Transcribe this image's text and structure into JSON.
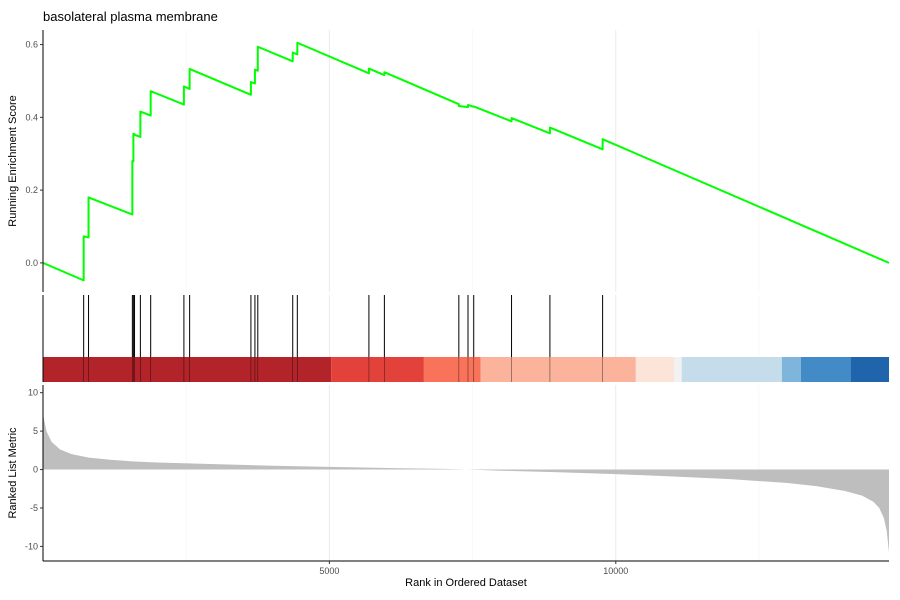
{
  "chart_data": {
    "type": "line",
    "title": "basolateral plasma membrane",
    "xlabel": "Rank in Ordered Dataset",
    "x_ticks": [
      5000,
      10000
    ],
    "x_tick_labels": [
      "5000",
      "10000"
    ],
    "xlim": [
      0,
      14770
    ],
    "grid": true,
    "colors": {
      "es_line": "#00ff00",
      "hits": "#000000",
      "metric_fill": "#bebebe",
      "grid": "#ebebeb"
    },
    "panels": {
      "enrichment": {
        "ylabel": "Running Enrichment Score",
        "ylim": [
          -0.08,
          0.64
        ],
        "y_ticks": [
          0.0,
          0.2,
          0.4,
          0.6
        ],
        "y_tick_labels": [
          "0.0",
          "0.2",
          "0.4",
          "0.6"
        ],
        "series": {
          "x": [
            0,
            710,
            710,
            795,
            795,
            1560,
            1560,
            1578,
            1578,
            1598,
            1598,
            1700,
            1700,
            1880,
            1880,
            2460,
            2460,
            2560,
            2560,
            3630,
            3630,
            3700,
            3700,
            3750,
            3750,
            4360,
            4360,
            4440,
            4440,
            5690,
            5690,
            5960,
            5960,
            7260,
            7260,
            7420,
            7420,
            7520,
            7520,
            8180,
            8180,
            8850,
            8850,
            9770,
            9770,
            14770
          ],
          "y": [
            0.0,
            -0.048,
            0.073,
            0.07,
            0.18,
            0.133,
            0.28,
            0.279,
            0.355,
            0.354,
            0.352,
            0.346,
            0.416,
            0.405,
            0.472,
            0.435,
            0.485,
            0.478,
            0.533,
            0.462,
            0.497,
            0.493,
            0.531,
            0.528,
            0.594,
            0.554,
            0.578,
            0.573,
            0.605,
            0.521,
            0.534,
            0.516,
            0.524,
            0.436,
            0.431,
            0.428,
            0.434,
            0.429,
            0.43,
            0.389,
            0.398,
            0.356,
            0.372,
            0.312,
            0.34,
            0.0
          ]
        }
      },
      "hits": {
        "positions": [
          710,
          795,
          1560,
          1578,
          1598,
          1700,
          1880,
          2460,
          2560,
          3630,
          3700,
          3750,
          4360,
          4440,
          5690,
          5960,
          7260,
          7420,
          7520,
          8180,
          8850,
          9770
        ]
      },
      "color_band": {
        "segments": [
          {
            "from": 0,
            "to": 5030,
            "color": "#b2232a"
          },
          {
            "from": 5030,
            "to": 6650,
            "color": "#e3423b"
          },
          {
            "from": 6650,
            "to": 7640,
            "color": "#f8735a"
          },
          {
            "from": 7640,
            "to": 10350,
            "color": "#fbb39b"
          },
          {
            "from": 10350,
            "to": 11020,
            "color": "#fde4d9"
          },
          {
            "from": 11020,
            "to": 11150,
            "color": "#f2f2f2"
          },
          {
            "from": 11150,
            "to": 12900,
            "color": "#c5dcea"
          },
          {
            "from": 12900,
            "to": 13230,
            "color": "#7db6da"
          },
          {
            "from": 13230,
            "to": 14100,
            "color": "#438bc6"
          },
          {
            "from": 14100,
            "to": 14770,
            "color": "#2065ab"
          }
        ]
      },
      "metric": {
        "ylabel": "Ranked List Metric",
        "ylim": [
          -11.9,
          11.0
        ],
        "y_ticks": [
          10,
          5,
          0,
          -5,
          -10
        ],
        "y_tick_labels": [
          "10",
          "5",
          "0",
          "-5",
          "-10"
        ],
        "series": {
          "x": [
            0,
            20,
            60,
            150,
            300,
            500,
            800,
            1200,
            1600,
            2000,
            3000,
            4000,
            5000,
            6000,
            7000,
            7400,
            8000,
            9000,
            10000,
            11000,
            12000,
            13000,
            13500,
            14000,
            14300,
            14500,
            14600,
            14680,
            14730,
            14770
          ],
          "y": [
            7.2,
            6.5,
            5.0,
            3.6,
            2.6,
            2.0,
            1.55,
            1.25,
            1.05,
            0.92,
            0.7,
            0.5,
            0.35,
            0.2,
            0.08,
            0.0,
            -0.15,
            -0.35,
            -0.6,
            -0.9,
            -1.25,
            -1.75,
            -2.15,
            -2.8,
            -3.4,
            -4.2,
            -5.0,
            -6.3,
            -8.0,
            -10.8
          ]
        }
      }
    }
  }
}
